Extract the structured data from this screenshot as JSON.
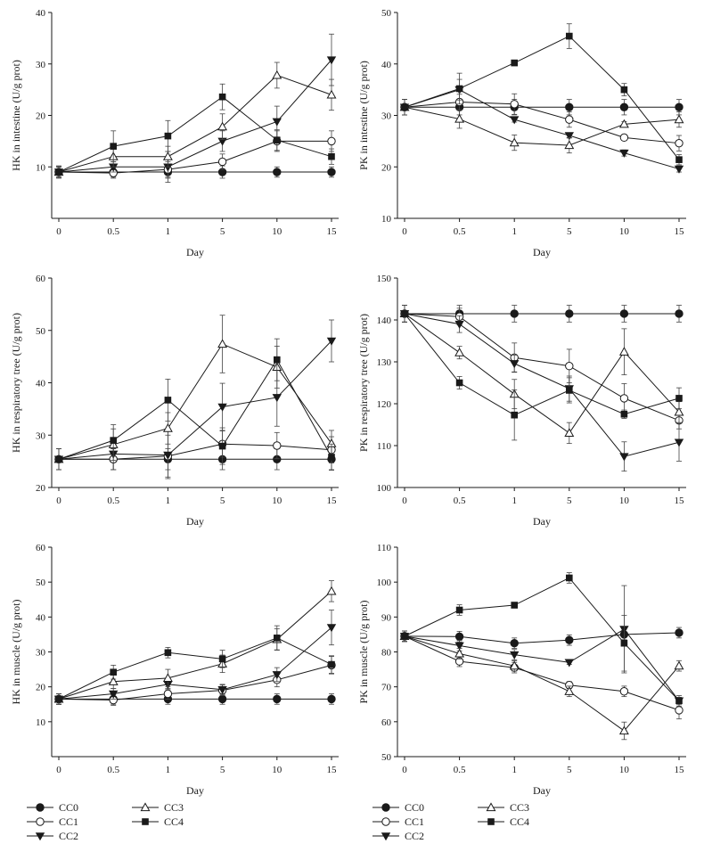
{
  "chart_data": [
    {
      "type": "line",
      "xlabel": "Day",
      "ylabel": "HK in intestine (U/g prot)",
      "categories": [
        "0",
        "0.5",
        "1",
        "5",
        "10",
        "15"
      ],
      "ylim": [
        0,
        40
      ],
      "yticks": [
        10,
        20,
        30,
        40
      ],
      "series": [
        {
          "name": "CC0",
          "values": [
            9.0,
            9.0,
            9.0,
            9.0,
            9.0,
            9.0
          ],
          "err": [
            1.2,
            1.0,
            1.2,
            1.2,
            1.0,
            1.0
          ]
        },
        {
          "name": "CC1",
          "values": [
            9.0,
            8.8,
            9.5,
            11.0,
            15.0,
            15.0
          ],
          "err": [
            1.0,
            1.0,
            1.5,
            1.5,
            2.0,
            2.0
          ]
        },
        {
          "name": "CC2",
          "values": [
            9.0,
            10.0,
            10.0,
            15.0,
            18.8,
            30.8
          ],
          "err": [
            1.0,
            1.0,
            3.0,
            2.0,
            3.0,
            5.0
          ]
        },
        {
          "name": "CC3",
          "values": [
            9.0,
            12.0,
            12.0,
            17.8,
            27.8,
            24.0
          ],
          "err": [
            1.0,
            2.0,
            2.0,
            2.5,
            2.5,
            3.0
          ]
        },
        {
          "name": "CC4",
          "values": [
            9.0,
            14.0,
            16.0,
            23.6,
            15.2,
            12.0
          ],
          "err": [
            1.0,
            3.0,
            3.0,
            2.5,
            2.0,
            1.5
          ]
        }
      ]
    },
    {
      "type": "line",
      "xlabel": "Day",
      "ylabel": "PK in intestine (U/g prot)",
      "categories": [
        "0",
        "0.5",
        "1",
        "5",
        "10",
        "15"
      ],
      "ylim": [
        10,
        50
      ],
      "yticks": [
        10,
        20,
        30,
        40,
        50
      ],
      "series": [
        {
          "name": "CC0",
          "values": [
            31.6,
            31.6,
            31.6,
            31.6,
            31.6,
            31.6
          ],
          "err": [
            1.5,
            1.5,
            1.5,
            1.5,
            1.5,
            1.5
          ]
        },
        {
          "name": "CC1",
          "values": [
            31.6,
            32.6,
            32.2,
            29.2,
            25.7,
            24.6
          ],
          "err": [
            1.5,
            1.5,
            2.0,
            1.5,
            0.5,
            1.5
          ]
        },
        {
          "name": "CC2",
          "values": [
            31.6,
            35.0,
            29.2,
            26.1,
            22.7,
            19.6
          ],
          "err": [
            1.5,
            2.0,
            0.5,
            0.5,
            0.6,
            0.6
          ]
        },
        {
          "name": "CC3",
          "values": [
            31.6,
            29.3,
            24.7,
            24.2,
            28.3,
            29.2
          ],
          "err": [
            1.5,
            1.8,
            1.5,
            1.5,
            0.5,
            1.5
          ]
        },
        {
          "name": "CC4",
          "values": [
            31.6,
            35.2,
            40.2,
            45.4,
            35.0,
            21.4
          ],
          "err": [
            1.5,
            3.0,
            0.3,
            2.4,
            1.2,
            1.0
          ]
        }
      ]
    },
    {
      "type": "line",
      "xlabel": "Day",
      "ylabel": "HK in respiratory tree (U/g prot)",
      "categories": [
        "0",
        "0.5",
        "1",
        "5",
        "10",
        "15"
      ],
      "ylim": [
        20,
        60
      ],
      "yticks": [
        20,
        30,
        40,
        50,
        60
      ],
      "series": [
        {
          "name": "CC0",
          "values": [
            25.4,
            25.4,
            25.4,
            25.4,
            25.4,
            25.4
          ],
          "err": [
            2.0,
            2.0,
            2.0,
            2.0,
            2.0,
            2.0
          ]
        },
        {
          "name": "CC1",
          "values": [
            25.4,
            25.4,
            26.0,
            28.3,
            28.0,
            27.2
          ],
          "err": [
            2.0,
            2.0,
            4.0,
            2.5,
            2.5,
            2.5
          ]
        },
        {
          "name": "CC2",
          "values": [
            25.4,
            26.4,
            26.2,
            35.4,
            37.2,
            48.0
          ],
          "err": [
            2.0,
            3.0,
            4.5,
            4.5,
            5.5,
            4.0
          ]
        },
        {
          "name": "CC3",
          "values": [
            25.4,
            28.2,
            31.3,
            47.4,
            43.0,
            28.4
          ],
          "err": [
            2.0,
            3.0,
            3.0,
            5.5,
            4.0,
            2.5
          ]
        },
        {
          "name": "CC4",
          "values": [
            25.4,
            29.0,
            36.7,
            27.9,
            44.4,
            25.8
          ],
          "err": [
            2.0,
            3.0,
            4.0,
            3.5,
            4.0,
            2.5
          ]
        }
      ]
    },
    {
      "type": "line",
      "xlabel": "Day",
      "ylabel": "PK in respiratory tree (U/g prot)",
      "categories": [
        "0",
        "0.5",
        "1",
        "5",
        "10",
        "15"
      ],
      "ylim": [
        100,
        150
      ],
      "yticks": [
        100,
        110,
        120,
        130,
        140,
        150
      ],
      "series": [
        {
          "name": "CC0",
          "values": [
            141.5,
            141.5,
            141.5,
            141.5,
            141.5,
            141.5
          ],
          "err": [
            2.0,
            2.0,
            2.0,
            2.0,
            2.0,
            2.0
          ]
        },
        {
          "name": "CC1",
          "values": [
            141.5,
            140.8,
            131.0,
            129.0,
            121.3,
            116.0
          ],
          "err": [
            2.0,
            2.0,
            3.5,
            4.0,
            3.5,
            2.0
          ]
        },
        {
          "name": "CC2",
          "values": [
            141.5,
            139.0,
            129.6,
            123.6,
            107.4,
            110.8
          ],
          "err": [
            2.0,
            2.0,
            2.0,
            3.0,
            3.5,
            4.5
          ]
        },
        {
          "name": "CC3",
          "values": [
            141.5,
            132.2,
            122.3,
            113.0,
            132.4,
            118.0
          ],
          "err": [
            2.0,
            1.5,
            3.5,
            2.5,
            5.5,
            2.5
          ]
        },
        {
          "name": "CC4",
          "values": [
            141.5,
            125.0,
            117.3,
            123.2,
            117.5,
            121.3
          ],
          "err": [
            2.0,
            1.5,
            6.0,
            3.0,
            1.0,
            2.5
          ]
        }
      ]
    },
    {
      "type": "line",
      "xlabel": "Day",
      "ylabel": "HK in muscle (U/g prot)",
      "categories": [
        "0",
        "0.5",
        "1",
        "5",
        "10",
        "15"
      ],
      "ylim": [
        0,
        60
      ],
      "yticks": [
        10,
        20,
        30,
        40,
        50,
        60
      ],
      "series": [
        {
          "name": "CC0",
          "values": [
            16.5,
            16.5,
            16.5,
            16.5,
            16.5,
            16.5
          ],
          "err": [
            1.5,
            1.5,
            1.5,
            1.5,
            1.5,
            1.5
          ]
        },
        {
          "name": "CC1",
          "values": [
            16.5,
            16.2,
            18.0,
            19.0,
            22.0,
            26.2
          ],
          "err": [
            1.5,
            1.5,
            1.5,
            1.5,
            2.0,
            2.5
          ]
        },
        {
          "name": "CC2",
          "values": [
            16.5,
            18.0,
            20.7,
            19.2,
            23.5,
            37.0
          ],
          "err": [
            1.5,
            1.5,
            1.5,
            1.5,
            2.0,
            5.0
          ]
        },
        {
          "name": "CC3",
          "values": [
            16.5,
            21.5,
            22.5,
            26.6,
            33.6,
            47.4
          ],
          "err": [
            1.5,
            2.0,
            2.5,
            2.5,
            3.0,
            3.0
          ]
        },
        {
          "name": "CC4",
          "values": [
            16.5,
            24.2,
            29.8,
            28.0,
            34.0,
            26.4
          ],
          "err": [
            1.5,
            2.0,
            1.5,
            2.5,
            3.5,
            2.5
          ]
        }
      ]
    },
    {
      "type": "line",
      "xlabel": "Day",
      "ylabel": "PK in muscle (U/g prot)",
      "categories": [
        "0",
        "0.5",
        "1",
        "5",
        "10",
        "15"
      ],
      "ylim": [
        50,
        110
      ],
      "yticks": [
        50,
        60,
        70,
        80,
        90,
        100,
        110
      ],
      "series": [
        {
          "name": "CC0",
          "values": [
            84.5,
            84.4,
            82.5,
            83.4,
            85.0,
            85.5
          ],
          "err": [
            1.5,
            1.5,
            1.5,
            1.5,
            1.5,
            1.5
          ]
        },
        {
          "name": "CC1",
          "values": [
            84.5,
            77.3,
            75.5,
            70.5,
            68.7,
            63.3
          ],
          "err": [
            1.5,
            1.5,
            1.5,
            1.0,
            1.5,
            2.5
          ]
        },
        {
          "name": "CC2",
          "values": [
            84.5,
            81.8,
            79.2,
            77.0,
            86.5,
            66.0
          ],
          "err": [
            1.5,
            1.5,
            1.5,
            0.6,
            12.5,
            1.0
          ]
        },
        {
          "name": "CC3",
          "values": [
            84.5,
            79.5,
            76.0,
            68.7,
            57.4,
            76.0
          ],
          "err": [
            1.5,
            1.5,
            1.5,
            1.5,
            2.5,
            1.5
          ]
        },
        {
          "name": "CC4",
          "values": [
            84.5,
            92.0,
            93.4,
            101.2,
            82.5,
            66.0
          ],
          "err": [
            1.5,
            1.5,
            0.5,
            1.5,
            8.0,
            1.5
          ]
        }
      ]
    }
  ],
  "legend": [
    {
      "label": "CC0",
      "marker": "circle-filled"
    },
    {
      "label": "CC1",
      "marker": "circle-open"
    },
    {
      "label": "CC2",
      "marker": "triangle-down-filled"
    },
    {
      "label": "CC3",
      "marker": "triangle-up-open"
    },
    {
      "label": "CC4",
      "marker": "square-filled"
    }
  ]
}
